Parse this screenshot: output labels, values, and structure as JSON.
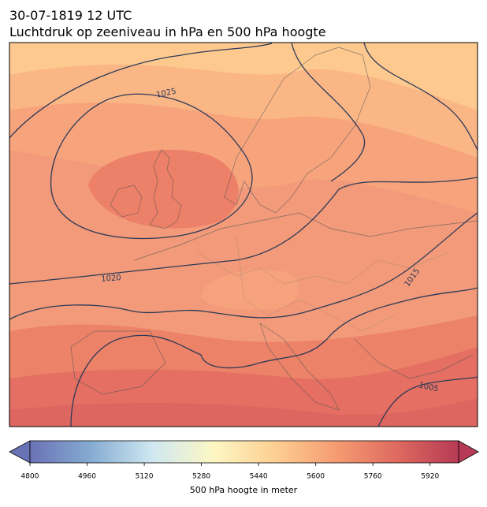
{
  "title": "30-07-1819 12 UTC",
  "subtitle": "Luchtdruk op zeeniveau in hPa en 500 hPa hoogte",
  "isobar_labels": [
    1025,
    1020,
    1015,
    1005
  ],
  "colorbar": {
    "label": "500 hPa hoogte in meter",
    "lim": [
      4800,
      6000
    ],
    "ticks": [
      4800,
      4960,
      5120,
      5280,
      5440,
      5600,
      5760,
      5920
    ],
    "colormap": [
      "#6a72b6",
      "#86acd2",
      "#cfe8f1",
      "#fdf7c4",
      "#fdcf92",
      "#f59b72",
      "#de6a5f",
      "#b63a55"
    ]
  }
}
